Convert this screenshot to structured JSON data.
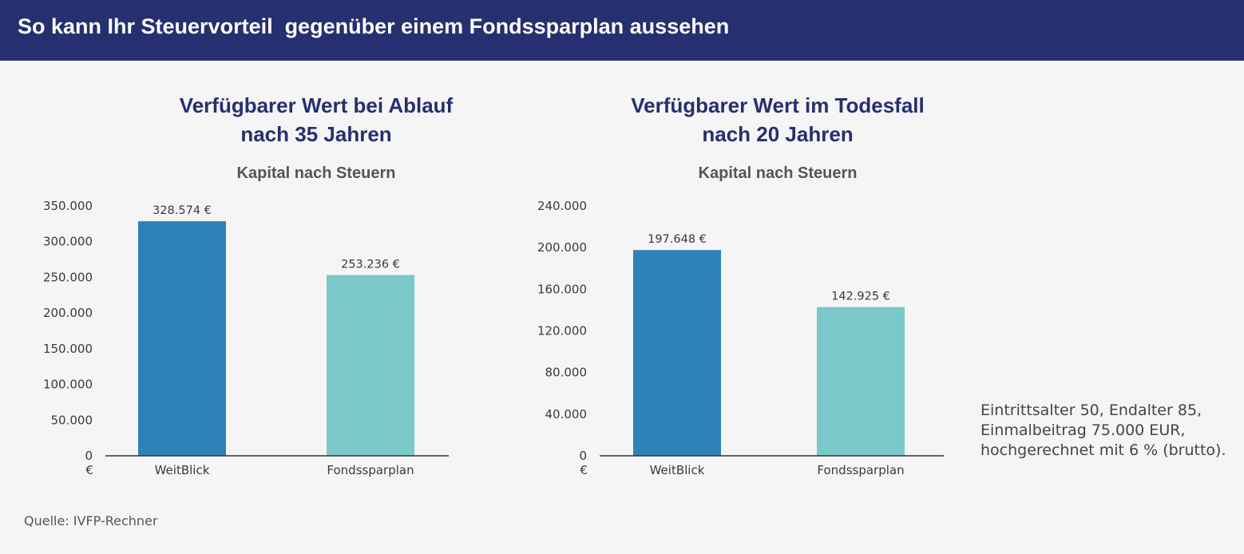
{
  "header": {
    "title": "So kann Ihr Steuervorteil  gegenüber einem Fondssparplan aussehen"
  },
  "chart_data": [
    {
      "type": "bar",
      "title_lines": [
        "Verfügbarer Wert bei Ablauf",
        "nach 35 Jahren"
      ],
      "subtitle": "Kapital nach Steuern",
      "categories": [
        "WeitBlick",
        "Fondssparplan"
      ],
      "values": [
        328574,
        253236
      ],
      "value_labels": [
        "328.574 €",
        "253.236 €"
      ],
      "colors": [
        "#2d82b7",
        "#7ac8c9"
      ],
      "ylim": [
        0,
        350000
      ],
      "yticks": [
        "0",
        "50.000",
        "100.000",
        "150.000",
        "200.000",
        "250.000",
        "300.000",
        "350.000"
      ],
      "yunit": "€",
      "grid": false
    },
    {
      "type": "bar",
      "title_lines": [
        "Verfügbarer Wert im Todesfall",
        "nach 20 Jahren"
      ],
      "subtitle": "Kapital nach Steuern",
      "categories": [
        "WeitBlick",
        "Fondssparplan"
      ],
      "values": [
        197648,
        142925
      ],
      "value_labels": [
        "197.648 €",
        "142.925 €"
      ],
      "colors": [
        "#2d82b7",
        "#7ac8c9"
      ],
      "ylim": [
        0,
        240000
      ],
      "yticks": [
        "0",
        "40.000",
        "80.000",
        "120.000",
        "160.000",
        "200.000",
        "240.000"
      ],
      "yunit": "€",
      "grid": false
    }
  ],
  "note": {
    "lines": [
      "Eintrittsalter 50, Endalter 85,",
      "Einmalbeitrag 75.000 EUR,",
      "hochgerechnet mit 6 % (brutto)."
    ]
  },
  "source": "Quelle: IVFP-Rechner"
}
